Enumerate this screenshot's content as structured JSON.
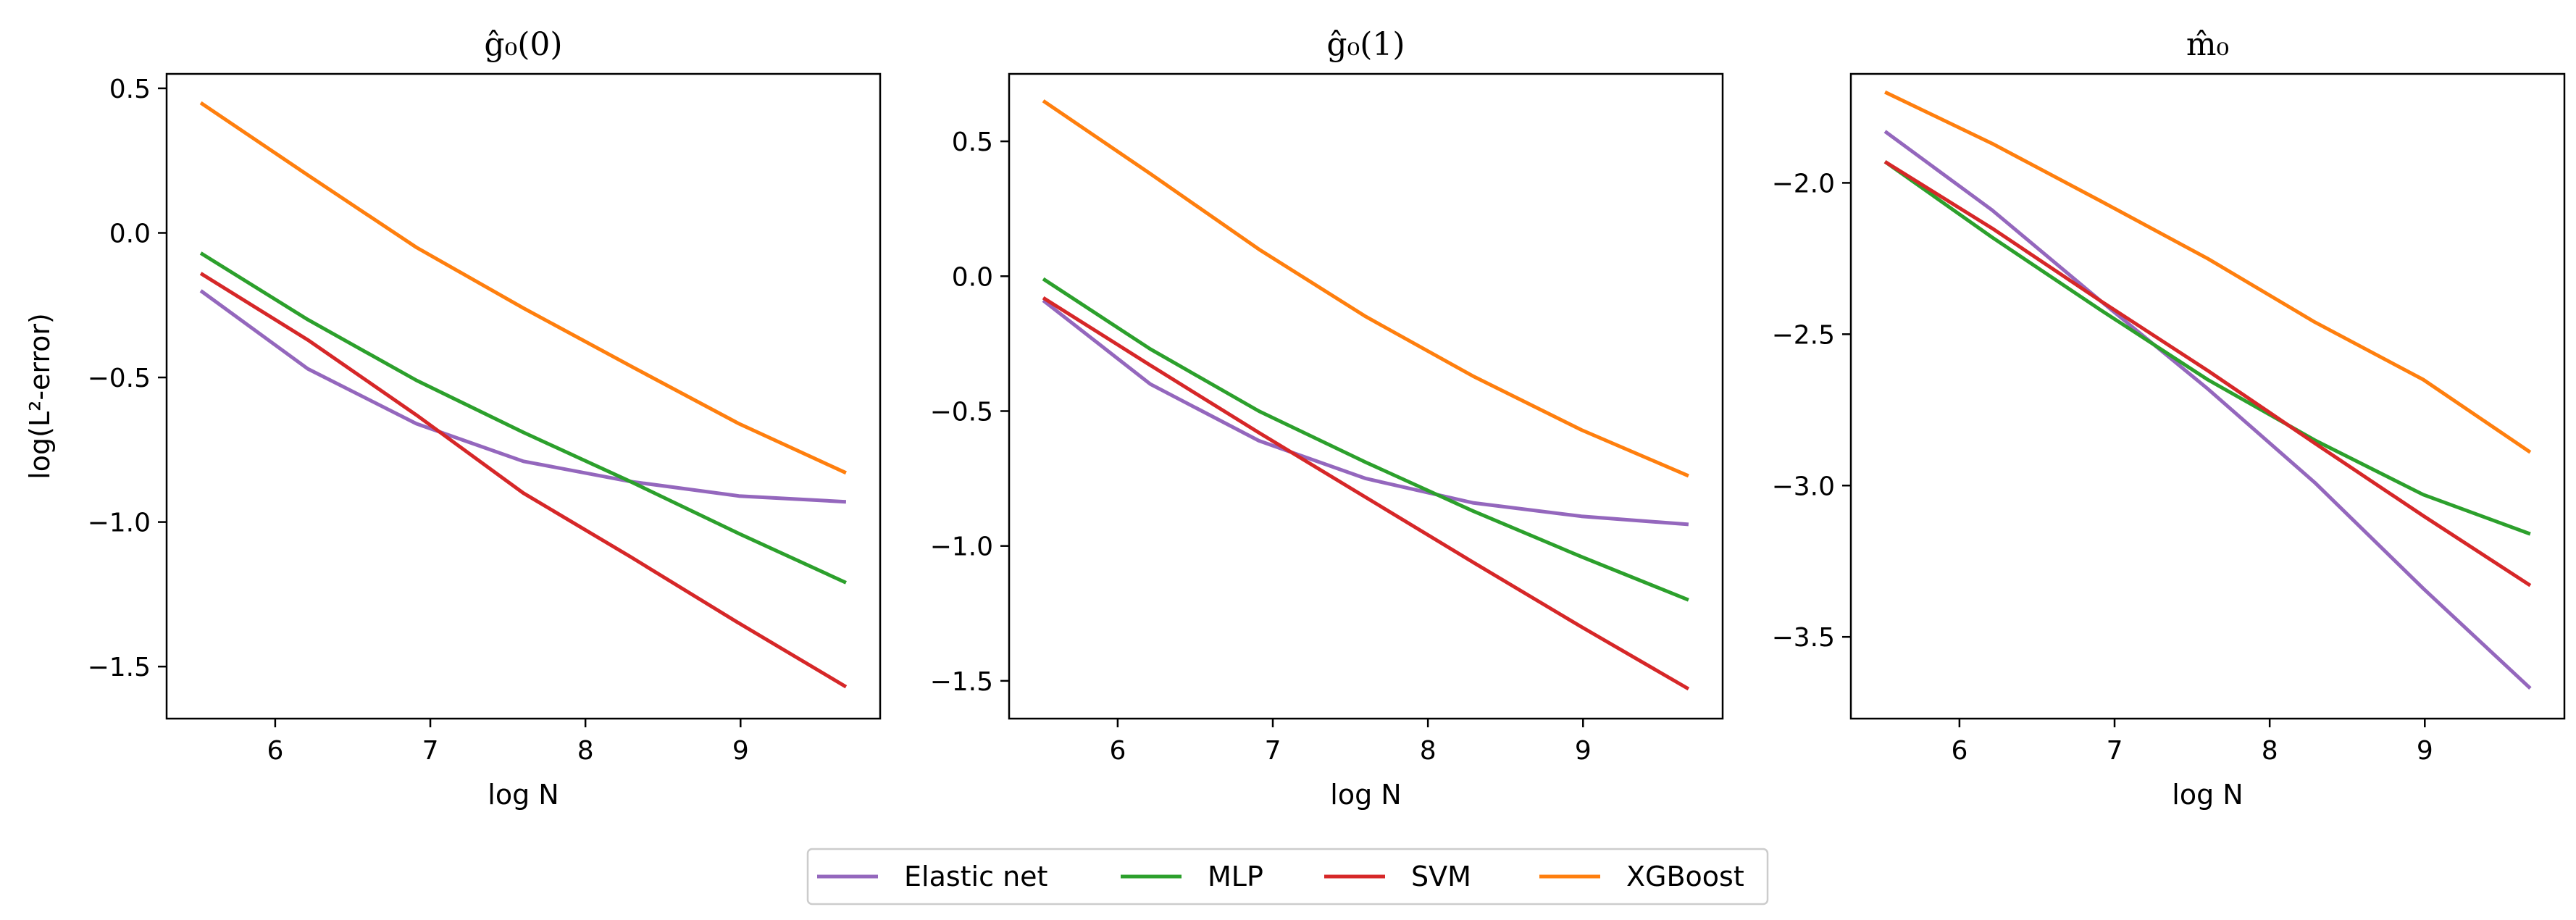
{
  "chart_data": [
    {
      "type": "line",
      "title": "ĝ₀(0)",
      "xlabel": "log N",
      "ylabel": "log(L²-error)",
      "xlim": [
        5.3,
        9.9
      ],
      "ylim": [
        -1.68,
        0.55
      ],
      "xticks": [
        6,
        7,
        8,
        9
      ],
      "yticks": [
        0.5,
        0.0,
        -0.5,
        -1.0,
        -1.5
      ],
      "x": [
        5.52,
        6.21,
        6.91,
        7.6,
        8.29,
        8.99,
        9.68
      ],
      "series": [
        {
          "name": "Elastic net",
          "color": "#9467bd",
          "values": [
            -0.2,
            -0.47,
            -0.66,
            -0.79,
            -0.86,
            -0.91,
            -0.93
          ]
        },
        {
          "name": "MLP",
          "color": "#2ca02c",
          "values": [
            -0.07,
            -0.3,
            -0.51,
            -0.69,
            -0.86,
            -1.04,
            -1.21
          ]
        },
        {
          "name": "SVM",
          "color": "#d62728",
          "values": [
            -0.14,
            -0.37,
            -0.63,
            -0.9,
            -1.12,
            -1.35,
            -1.57
          ]
        },
        {
          "name": "XGBoost",
          "color": "#ff7f0e",
          "values": [
            0.45,
            0.2,
            -0.05,
            -0.26,
            -0.46,
            -0.66,
            -0.83
          ]
        }
      ]
    },
    {
      "type": "line",
      "title": "ĝ₀(1)",
      "xlabel": "log N",
      "ylabel": "",
      "xlim": [
        5.3,
        9.9
      ],
      "ylim": [
        -1.64,
        0.75
      ],
      "xticks": [
        6,
        7,
        8,
        9
      ],
      "yticks": [
        0.5,
        0.0,
        -0.5,
        -1.0,
        -1.5
      ],
      "x": [
        5.52,
        6.21,
        6.91,
        7.6,
        8.29,
        8.99,
        9.68
      ],
      "series": [
        {
          "name": "Elastic net",
          "color": "#9467bd",
          "values": [
            -0.09,
            -0.4,
            -0.61,
            -0.75,
            -0.84,
            -0.89,
            -0.92
          ]
        },
        {
          "name": "MLP",
          "color": "#2ca02c",
          "values": [
            -0.01,
            -0.27,
            -0.5,
            -0.69,
            -0.87,
            -1.04,
            -1.2
          ]
        },
        {
          "name": "SVM",
          "color": "#d62728",
          "values": [
            -0.08,
            -0.33,
            -0.58,
            -0.82,
            -1.06,
            -1.3,
            -1.53
          ]
        },
        {
          "name": "XGBoost",
          "color": "#ff7f0e",
          "values": [
            0.65,
            0.38,
            0.1,
            -0.15,
            -0.37,
            -0.57,
            -0.74
          ]
        }
      ]
    },
    {
      "type": "line",
      "title": "m̂₀",
      "xlabel": "log N",
      "ylabel": "",
      "xlim": [
        5.3,
        9.9
      ],
      "ylim": [
        -3.77,
        -1.64
      ],
      "xticks": [
        6,
        7,
        8,
        9
      ],
      "yticks": [
        -2.0,
        -2.5,
        -3.0,
        -3.5
      ],
      "x": [
        5.52,
        6.21,
        6.91,
        7.6,
        8.29,
        8.99,
        9.68
      ],
      "series": [
        {
          "name": "Elastic net",
          "color": "#9467bd",
          "values": [
            -1.83,
            -2.09,
            -2.39,
            -2.68,
            -2.99,
            -3.34,
            -3.67
          ]
        },
        {
          "name": "MLP",
          "color": "#2ca02c",
          "values": [
            -1.93,
            -2.18,
            -2.42,
            -2.65,
            -2.85,
            -3.03,
            -3.16
          ]
        },
        {
          "name": "SVM",
          "color": "#d62728",
          "values": [
            -1.93,
            -2.15,
            -2.39,
            -2.62,
            -2.86,
            -3.1,
            -3.33
          ]
        },
        {
          "name": "XGBoost",
          "color": "#ff7f0e",
          "values": [
            -1.7,
            -1.87,
            -2.06,
            -2.25,
            -2.46,
            -2.65,
            -2.89
          ]
        }
      ]
    }
  ],
  "legend": {
    "placement": "bottom-center",
    "items": [
      {
        "label": "Elastic net",
        "color": "#9467bd"
      },
      {
        "label": "MLP",
        "color": "#2ca02c"
      },
      {
        "label": "SVM",
        "color": "#d62728"
      },
      {
        "label": "XGBoost",
        "color": "#ff7f0e"
      }
    ]
  }
}
